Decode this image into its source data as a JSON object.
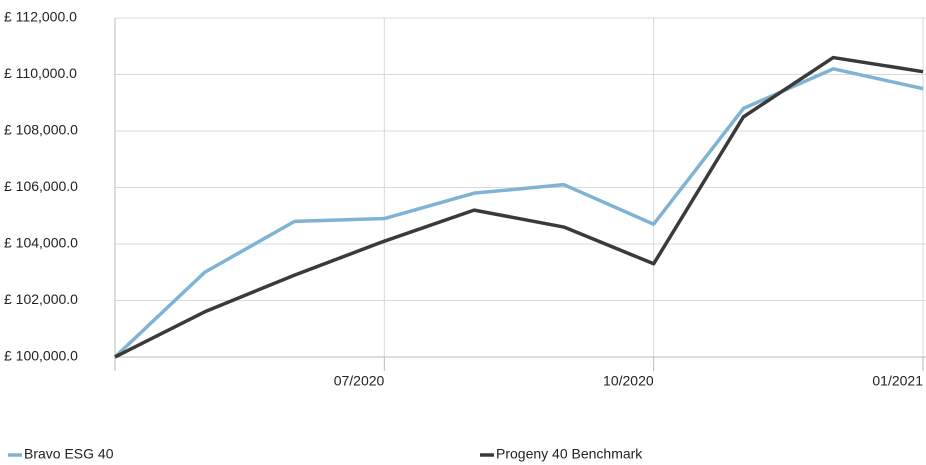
{
  "chart_data": {
    "type": "line",
    "categories": [
      null,
      null,
      null,
      "07/2020",
      null,
      null,
      "10/2020",
      null,
      null,
      "01/2021"
    ],
    "series": [
      {
        "name": "Bravo ESG 40",
        "color": "#7fb3d5",
        "values": [
          100000,
          103000,
          104800,
          104900,
          105800,
          106100,
          104700,
          108800,
          110200,
          109500
        ]
      },
      {
        "name": "Progeny 40 Benchmark",
        "color": "#3a3a3a",
        "values": [
          100000,
          101600,
          102900,
          104100,
          105200,
          104600,
          103300,
          108500,
          110600,
          110100
        ]
      }
    ],
    "ylim": [
      100000,
      112000
    ],
    "yticks": [
      {
        "value": 100000,
        "label": "£ 100,000.0"
      },
      {
        "value": 102000,
        "label": "£ 102,000.0"
      },
      {
        "value": 104000,
        "label": "£ 104,000.0"
      },
      {
        "value": 106000,
        "label": "£ 106,000.0"
      },
      {
        "value": 108000,
        "label": "£ 108,000.0"
      },
      {
        "value": 110000,
        "label": "£ 110,000.0"
      },
      {
        "value": 112000,
        "label": "£ 112,000.0"
      }
    ],
    "grid": true,
    "legend": "bottom"
  }
}
